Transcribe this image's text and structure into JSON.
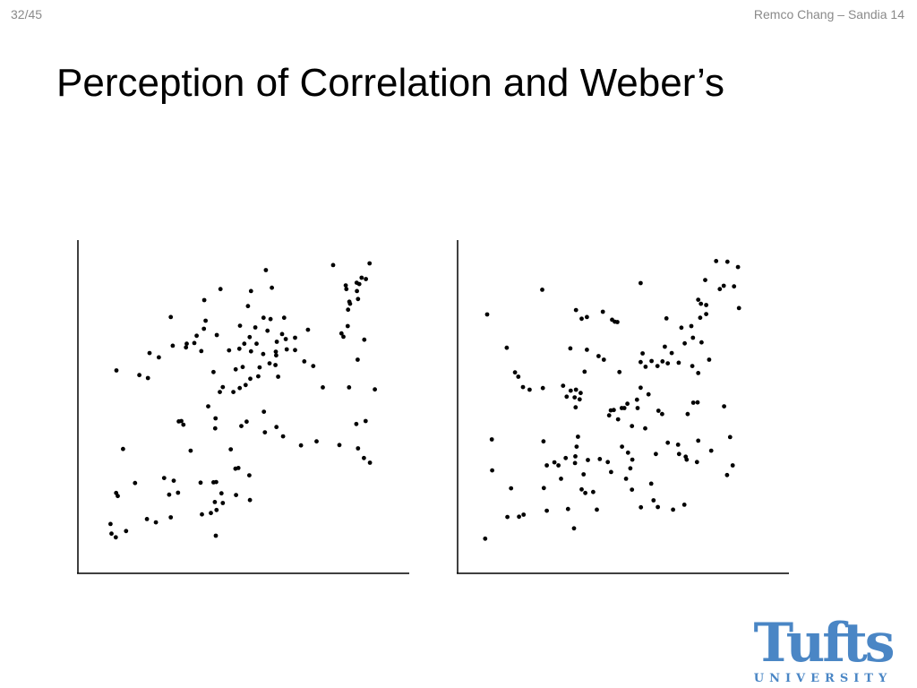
{
  "header": {
    "page_number": "32/45",
    "footer_label": "Remco Chang – Sandia 14",
    "title": "Perception of Correlation and Weber’s"
  },
  "logo": {
    "word": "Tufts",
    "subword": "UNIVERSITY",
    "color": "#4a86c5"
  },
  "chart_data": [
    {
      "type": "scatter",
      "title": "",
      "xlabel": "",
      "ylabel": "",
      "xlim": [
        0,
        100
      ],
      "ylim": [
        0,
        100
      ],
      "grid": false,
      "color": "#000000",
      "points": [
        [
          10.1,
          14.8
        ],
        [
          11.7,
          10.8
        ],
        [
          10.4,
          11.9
        ],
        [
          14.8,
          12.7
        ],
        [
          11.8,
          24.1
        ],
        [
          12.3,
          23.2
        ],
        [
          17.5,
          27.1
        ],
        [
          13.9,
          37.3
        ],
        [
          11.9,
          60.9
        ],
        [
          23.8,
          15.3
        ],
        [
          21.1,
          16.3
        ],
        [
          28.3,
          16.8
        ],
        [
          29.2,
          27.8
        ],
        [
          27.8,
          23.6
        ],
        [
          26.3,
          28.6
        ],
        [
          30.5,
          24.2
        ],
        [
          34.3,
          36.8
        ],
        [
          32.1,
          44.6
        ],
        [
          30.7,
          45.6
        ],
        [
          31.5,
          45.7
        ],
        [
          18.8,
          59.5
        ],
        [
          21.4,
          58.6
        ],
        [
          21.9,
          66.1
        ],
        [
          24.7,
          64.8
        ],
        [
          28.9,
          68.3
        ],
        [
          33.1,
          68.9
        ],
        [
          32.9,
          67.8
        ],
        [
          35.4,
          69.1
        ],
        [
          36.1,
          71.3
        ],
        [
          37.5,
          66.7
        ],
        [
          38.4,
          82.0
        ],
        [
          28.3,
          76.9
        ],
        [
          41.9,
          11.3
        ],
        [
          37.7,
          17.7
        ],
        [
          41.6,
          21.4
        ],
        [
          44.0,
          21.1
        ],
        [
          42.1,
          19.0
        ],
        [
          40.4,
          18.1
        ],
        [
          43.6,
          24.0
        ],
        [
          42.0,
          27.4
        ],
        [
          37.3,
          27.2
        ],
        [
          41.2,
          27.3
        ],
        [
          52.2,
          22.0
        ],
        [
          48.0,
          23.5
        ],
        [
          47.8,
          31.4
        ],
        [
          48.7,
          31.6
        ],
        [
          52.0,
          29.4
        ],
        [
          46.4,
          37.2
        ],
        [
          49.6,
          44.2
        ],
        [
          51.2,
          45.5
        ],
        [
          56.7,
          42.3
        ],
        [
          60.2,
          43.9
        ],
        [
          62.2,
          41.1
        ],
        [
          56.4,
          48.5
        ],
        [
          41.7,
          43.5
        ],
        [
          41.8,
          46.5
        ],
        [
          39.6,
          50.1
        ],
        [
          43.1,
          54.4
        ],
        [
          41.2,
          60.4
        ],
        [
          44.0,
          55.9
        ],
        [
          47.2,
          54.4
        ],
        [
          49.1,
          55.6
        ],
        [
          50.9,
          56.5
        ],
        [
          50.0,
          61.9
        ],
        [
          47.9,
          61.2
        ],
        [
          52.3,
          58.4
        ],
        [
          54.7,
          59.1
        ],
        [
          55.1,
          61.8
        ],
        [
          58.1,
          63.0
        ],
        [
          59.9,
          62.5
        ],
        [
          60.7,
          59.0
        ],
        [
          45.9,
          66.9
        ],
        [
          49.0,
          67.4
        ],
        [
          50.5,
          68.9
        ],
        [
          52.5,
          66.6
        ],
        [
          54.2,
          68.9
        ],
        [
          56.2,
          65.8
        ],
        [
          60.0,
          66.5
        ],
        [
          63.3,
          67.2
        ],
        [
          65.8,
          67.0
        ],
        [
          61.9,
          71.8
        ],
        [
          63.0,
          70.3
        ],
        [
          60.3,
          69.5
        ],
        [
          60.1,
          65.4
        ],
        [
          38.3,
          73.4
        ],
        [
          38.8,
          75.8
        ],
        [
          42.2,
          71.5
        ],
        [
          49.2,
          74.3
        ],
        [
          57.5,
          72.8
        ],
        [
          62.5,
          76.7
        ],
        [
          58.4,
          76.3
        ],
        [
          69.7,
          73.1
        ],
        [
          65.8,
          70.7
        ],
        [
          68.6,
          63.6
        ],
        [
          71.3,
          62.2
        ],
        [
          52.1,
          70.9
        ],
        [
          56.3,
          76.7
        ],
        [
          51.6,
          80.2
        ],
        [
          53.8,
          73.8
        ],
        [
          43.3,
          85.3
        ],
        [
          52.5,
          84.7
        ],
        [
          57.0,
          91.0
        ],
        [
          58.8,
          85.7
        ],
        [
          72.3,
          39.6
        ],
        [
          67.6,
          38.4
        ],
        [
          79.2,
          38.5
        ],
        [
          84.8,
          37.5
        ],
        [
          86.6,
          34.6
        ],
        [
          88.4,
          33.2
        ],
        [
          84.3,
          44.8
        ],
        [
          74.2,
          55.8
        ],
        [
          82.1,
          55.8
        ],
        [
          89.9,
          55.2
        ],
        [
          87.1,
          45.7
        ],
        [
          79.8,
          72.0
        ],
        [
          84.7,
          64.1
        ],
        [
          86.7,
          70.1
        ],
        [
          82.2,
          81.5
        ],
        [
          84.8,
          82.3
        ],
        [
          81.8,
          79.1
        ],
        [
          87.2,
          88.3
        ],
        [
          84.5,
          84.7
        ],
        [
          82.4,
          80.9
        ],
        [
          81.1,
          86.4
        ],
        [
          81.3,
          85.3
        ],
        [
          84.4,
          87.2
        ],
        [
          85.9,
          88.7
        ],
        [
          85.2,
          86.8
        ],
        [
          88.3,
          93.0
        ],
        [
          77.3,
          92.5
        ],
        [
          81.7,
          74.2
        ],
        [
          80.4,
          71.0
        ]
      ]
    },
    {
      "type": "scatter",
      "title": "",
      "xlabel": "",
      "ylabel": "",
      "xlim": [
        0,
        100
      ],
      "ylim": [
        0,
        100
      ],
      "grid": false,
      "color": "#000000",
      "points": [
        [
          8.6,
          10.4
        ],
        [
          15.3,
          16.9
        ],
        [
          20.2,
          17.6
        ],
        [
          18.8,
          17.0
        ],
        [
          16.4,
          25.5
        ],
        [
          10.7,
          30.9
        ],
        [
          10.6,
          40.2
        ],
        [
          26.3,
          25.6
        ],
        [
          27.2,
          18.8
        ],
        [
          26.2,
          39.6
        ],
        [
          27.2,
          32.4
        ],
        [
          29.5,
          33.3
        ],
        [
          30.7,
          32.4
        ],
        [
          32.9,
          34.6
        ],
        [
          35.7,
          33.1
        ],
        [
          35.8,
          35.1
        ],
        [
          36.6,
          41.0
        ],
        [
          36.2,
          38.0
        ],
        [
          39.6,
          34.0
        ],
        [
          38.3,
          29.7
        ],
        [
          31.5,
          28.4
        ],
        [
          37.7,
          25.2
        ],
        [
          41.2,
          24.4
        ],
        [
          43.2,
          34.3
        ],
        [
          45.6,
          33.4
        ],
        [
          46.6,
          30.4
        ],
        [
          49.9,
          38.0
        ],
        [
          53.0,
          34.1
        ],
        [
          51.7,
          36.2
        ],
        [
          52.4,
          31.5
        ],
        [
          51.1,
          28.4
        ],
        [
          52.9,
          25.1
        ],
        [
          59.4,
          21.9
        ],
        [
          60.7,
          19.9
        ],
        [
          58.7,
          26.9
        ],
        [
          60.1,
          35.8
        ],
        [
          56.9,
          43.5
        ],
        [
          54.6,
          49.6
        ],
        [
          52.9,
          44.2
        ],
        [
          62.0,
          47.8
        ],
        [
          60.9,
          48.8
        ],
        [
          63.7,
          39.2
        ],
        [
          67.1,
          35.8
        ],
        [
          66.8,
          38.6
        ],
        [
          69.4,
          34.1
        ],
        [
          72.5,
          33.4
        ],
        [
          69.7,
          47.8
        ],
        [
          71.4,
          51.2
        ],
        [
          68.7,
          20.6
        ],
        [
          65.3,
          19.1
        ],
        [
          55.6,
          19.8
        ],
        [
          42.3,
          19.1
        ],
        [
          38.8,
          24.1
        ],
        [
          33.6,
          19.3
        ],
        [
          35.4,
          13.5
        ],
        [
          46.0,
          47.4
        ],
        [
          48.7,
          46.2
        ],
        [
          47.4,
          49.0
        ],
        [
          46.5,
          48.9
        ],
        [
          49.8,
          49.6
        ],
        [
          50.6,
          49.6
        ],
        [
          51.5,
          50.9
        ],
        [
          54.4,
          52.1
        ],
        [
          55.5,
          55.7
        ],
        [
          57.9,
          53.7
        ],
        [
          37.1,
          52.2
        ],
        [
          37.4,
          54.1
        ],
        [
          36.0,
          55.1
        ],
        [
          35.9,
          49.8
        ],
        [
          35.6,
          52.8
        ],
        [
          34.4,
          54.8
        ],
        [
          33.2,
          53.0
        ],
        [
          32.1,
          56.3
        ],
        [
          26.0,
          55.6
        ],
        [
          22.0,
          55.1
        ],
        [
          20.0,
          55.9
        ],
        [
          18.6,
          59.0
        ],
        [
          17.6,
          60.3
        ],
        [
          15.1,
          67.7
        ],
        [
          9.2,
          77.7
        ],
        [
          25.8,
          85.1
        ],
        [
          39.3,
          67.1
        ],
        [
          42.8,
          65.2
        ],
        [
          44.4,
          64.1
        ],
        [
          49.1,
          60.4
        ],
        [
          38.6,
          60.5
        ],
        [
          34.3,
          67.5
        ],
        [
          39.3,
          76.9
        ],
        [
          36.0,
          79.0
        ],
        [
          37.7,
          76.4
        ],
        [
          48.5,
          75.4
        ],
        [
          46.9,
          76.1
        ],
        [
          47.7,
          75.5
        ],
        [
          44.1,
          78.5
        ],
        [
          56.1,
          66.0
        ],
        [
          55.5,
          63.4
        ],
        [
          57.0,
          62.0
        ],
        [
          60.6,
          62.2
        ],
        [
          58.8,
          63.7
        ],
        [
          62.1,
          63.6
        ],
        [
          62.8,
          68.0
        ],
        [
          63.7,
          63.0
        ],
        [
          64.9,
          66.1
        ],
        [
          67.0,
          63.2
        ],
        [
          68.8,
          69.0
        ],
        [
          71.3,
          70.7
        ],
        [
          73.9,
          69.3
        ],
        [
          76.2,
          64.1
        ],
        [
          71.1,
          62.2
        ],
        [
          72.9,
          60.1
        ],
        [
          72.7,
          51.3
        ],
        [
          80.7,
          50.1
        ],
        [
          72.9,
          39.8
        ],
        [
          76.8,
          36.8
        ],
        [
          82.5,
          40.9
        ],
        [
          81.6,
          29.5
        ],
        [
          83.3,
          32.4
        ],
        [
          69.1,
          35.0
        ],
        [
          55.5,
          87.1
        ],
        [
          63.3,
          76.5
        ],
        [
          67.8,
          73.7
        ],
        [
          70.8,
          74.2
        ],
        [
          73.5,
          76.7
        ],
        [
          75.3,
          77.8
        ],
        [
          73.7,
          80.9
        ],
        [
          72.9,
          82.1
        ],
        [
          75.3,
          80.5
        ],
        [
          79.4,
          85.3
        ],
        [
          75.0,
          88.0
        ],
        [
          80.6,
          86.3
        ],
        [
          83.7,
          86.1
        ],
        [
          85.2,
          79.6
        ],
        [
          78.3,
          93.7
        ],
        [
          81.7,
          93.5
        ],
        [
          84.9,
          91.9
        ]
      ]
    }
  ]
}
